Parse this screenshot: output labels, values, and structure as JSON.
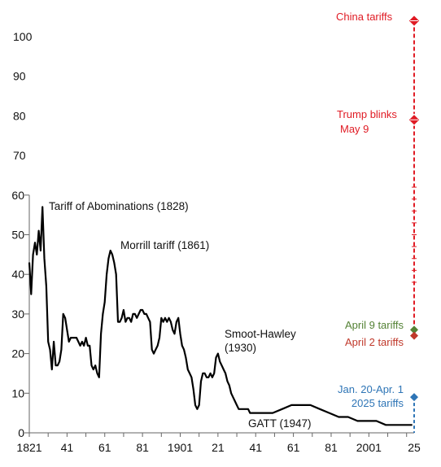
{
  "chart_data": {
    "type": "line",
    "title": "",
    "xlabel": "",
    "ylabel": "",
    "xlim": [
      1821,
      2025
    ],
    "ylim": [
      0,
      100
    ],
    "x_ticks": [
      {
        "value": 1821,
        "label": "1821"
      },
      {
        "value": 1841,
        "label": "41"
      },
      {
        "value": 1861,
        "label": "61"
      },
      {
        "value": 1881,
        "label": "81"
      },
      {
        "value": 1901,
        "label": "1901"
      },
      {
        "value": 1921,
        "label": "21"
      },
      {
        "value": 1941,
        "label": "41"
      },
      {
        "value": 1961,
        "label": "61"
      },
      {
        "value": 1981,
        "label": "81"
      },
      {
        "value": 2001,
        "label": "2001"
      },
      {
        "value": 2025,
        "label": "25"
      }
    ],
    "y_ticks": [
      {
        "value": 0,
        "label": "0"
      },
      {
        "value": 10,
        "label": "10"
      },
      {
        "value": 20,
        "label": "20"
      },
      {
        "value": 30,
        "label": "30"
      },
      {
        "value": 40,
        "label": "40"
      },
      {
        "value": 50,
        "label": "50"
      },
      {
        "value": 60,
        "label": "60"
      },
      {
        "value": 70,
        "label": "70"
      },
      {
        "value": 80,
        "label": "80"
      },
      {
        "value": 90,
        "label": "90"
      },
      {
        "value": 100,
        "label": "100"
      }
    ],
    "series": [
      {
        "x": [
          1821,
          1822,
          1823,
          1824,
          1825,
          1826,
          1827,
          1828,
          1829,
          1830,
          1831,
          1832,
          1833,
          1834,
          1835,
          1836,
          1837,
          1838,
          1839,
          1840,
          1841,
          1842,
          1843,
          1844,
          1845,
          1846,
          1847,
          1848,
          1849,
          1850,
          1851,
          1852,
          1853,
          1854,
          1855,
          1856,
          1857,
          1858,
          1859,
          1860,
          1861,
          1862,
          1863,
          1864,
          1865,
          1866,
          1867,
          1868,
          1869,
          1870,
          1871,
          1872,
          1873,
          1874,
          1875,
          1876,
          1877,
          1878,
          1879,
          1880,
          1881,
          1882,
          1883,
          1884,
          1885,
          1886,
          1887,
          1888,
          1889,
          1890,
          1891,
          1892,
          1893,
          1894,
          1895,
          1896,
          1897,
          1898,
          1899,
          1900,
          1901,
          1902,
          1903,
          1904,
          1905,
          1906,
          1907,
          1908,
          1909,
          1910,
          1911,
          1912,
          1913,
          1914,
          1915,
          1916,
          1917,
          1918,
          1919,
          1920,
          1921,
          1922,
          1923,
          1924,
          1925,
          1926,
          1927,
          1928,
          1929,
          1930,
          1931,
          1932,
          1933,
          1934,
          1935,
          1936,
          1937,
          1938,
          1939,
          1940,
          1941,
          1942,
          1943,
          1944,
          1945,
          1946,
          1947,
          1948,
          1949,
          1950,
          1955,
          1960,
          1965,
          1970,
          1975,
          1980,
          1985,
          1990,
          1995,
          2000,
          2005,
          2010,
          2015,
          2018,
          2020,
          2022,
          2024
        ],
        "y": [
          43,
          35,
          45,
          48,
          45,
          51,
          46,
          57,
          44,
          37,
          23,
          21,
          16,
          23,
          17,
          17,
          18,
          21,
          30,
          29,
          26,
          23,
          24,
          24,
          24,
          24,
          23,
          22,
          23,
          22,
          24,
          22,
          22,
          17,
          16,
          17,
          15,
          14,
          25,
          30,
          33,
          40,
          44,
          46,
          45,
          43,
          40,
          28,
          28,
          29,
          31,
          28,
          29,
          29,
          28,
          30,
          30,
          29,
          30,
          31,
          31,
          30,
          30,
          29,
          28,
          21,
          20,
          21,
          22,
          24,
          29,
          28,
          29,
          28,
          29,
          28,
          26,
          25,
          28,
          29,
          25,
          22,
          21,
          19,
          16,
          15,
          14,
          11,
          7,
          6,
          7,
          13,
          15,
          15,
          14,
          14,
          15,
          14,
          15,
          19,
          20,
          18,
          17,
          16,
          15,
          13,
          12,
          10,
          9,
          8,
          7,
          6,
          6,
          6,
          6,
          6,
          6,
          5,
          5,
          5,
          5,
          5,
          5,
          5,
          5,
          5,
          5,
          5,
          5,
          5,
          6,
          7,
          7,
          7,
          6,
          5,
          4,
          4,
          3,
          3,
          3,
          2,
          2,
          2,
          2,
          2,
          2
        ]
      }
    ],
    "annotations": [
      {
        "text": "Tariff of Abominations (1828)",
        "x": 1828
      },
      {
        "text": "Morrill tariff (1861)",
        "x": 1861
      },
      {
        "text": "Smoot-Hawley",
        "x": 1930
      },
      {
        "text": "(1930)",
        "x": 1930
      },
      {
        "text": "GATT (1947)",
        "x": 1947
      }
    ],
    "markers": [
      {
        "x": 2025,
        "y": 104,
        "color": "#e01b24",
        "lines": [
          "China tariffs"
        ]
      },
      {
        "x": 2025,
        "y": 79,
        "color": "#e01b24",
        "lines": [
          "Trump blinks",
          "May 9"
        ]
      },
      {
        "x": 2025,
        "y": 26,
        "color": "#548235",
        "lines": [
          "April 9 tariffs"
        ]
      },
      {
        "x": 2025,
        "y": 24.5,
        "color": "#c0392b",
        "lines": [
          "April 2 tariffs"
        ]
      },
      {
        "x": 2025,
        "y": 9,
        "color": "#2e75b6",
        "lines": [
          "Jan. 20-Apr. 1",
          "2025 tariffs"
        ]
      }
    ]
  }
}
